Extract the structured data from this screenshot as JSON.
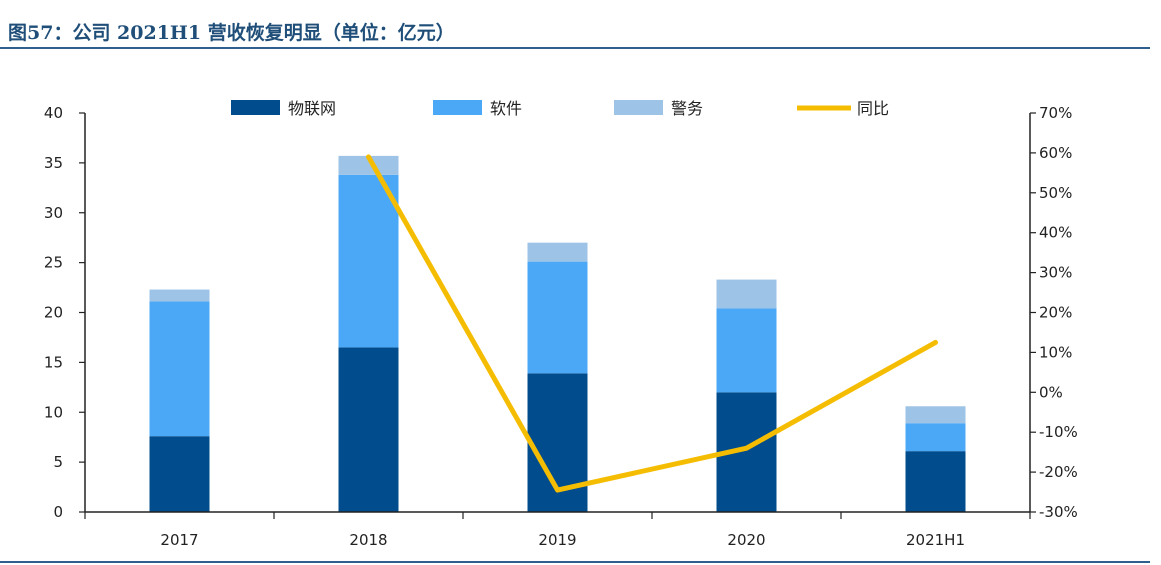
{
  "header": {
    "title": "图57：公司 2021H1 营收恢复明显（单位：亿元）"
  },
  "colors": {
    "iot": "#004C8C",
    "software": "#4BA8F6",
    "police": "#9DC3E6",
    "yoy": "#F5BD02",
    "rule": "#2e5f8f"
  },
  "chart_data": {
    "type": "bar",
    "stacked": true,
    "categories": [
      "2017",
      "2018",
      "2019",
      "2020",
      "2021H1"
    ],
    "series": [
      {
        "name": "物联网",
        "type": "bar",
        "axis": "left",
        "values": [
          7.6,
          16.5,
          13.9,
          12.0,
          6.1
        ]
      },
      {
        "name": "软件",
        "type": "bar",
        "axis": "left",
        "values": [
          13.5,
          17.3,
          11.2,
          8.4,
          2.8
        ]
      },
      {
        "name": "警务",
        "type": "bar",
        "axis": "left",
        "values": [
          1.2,
          1.9,
          1.9,
          2.9,
          1.7
        ]
      },
      {
        "name": "同比",
        "type": "line",
        "axis": "right",
        "values": [
          null,
          0.59,
          -0.245,
          -0.14,
          0.125
        ]
      }
    ],
    "ylim": [
      0,
      40
    ],
    "yticks": [
      "0",
      "5",
      "10",
      "15",
      "20",
      "25",
      "30",
      "35",
      "40"
    ],
    "y2lim": [
      -0.3,
      0.7
    ],
    "y2ticks": [
      "-30%",
      "-20%",
      "-10%",
      "0%",
      "10%",
      "20%",
      "30%",
      "40%",
      "50%",
      "60%",
      "70%"
    ],
    "legend_position": "top",
    "grid": false
  }
}
